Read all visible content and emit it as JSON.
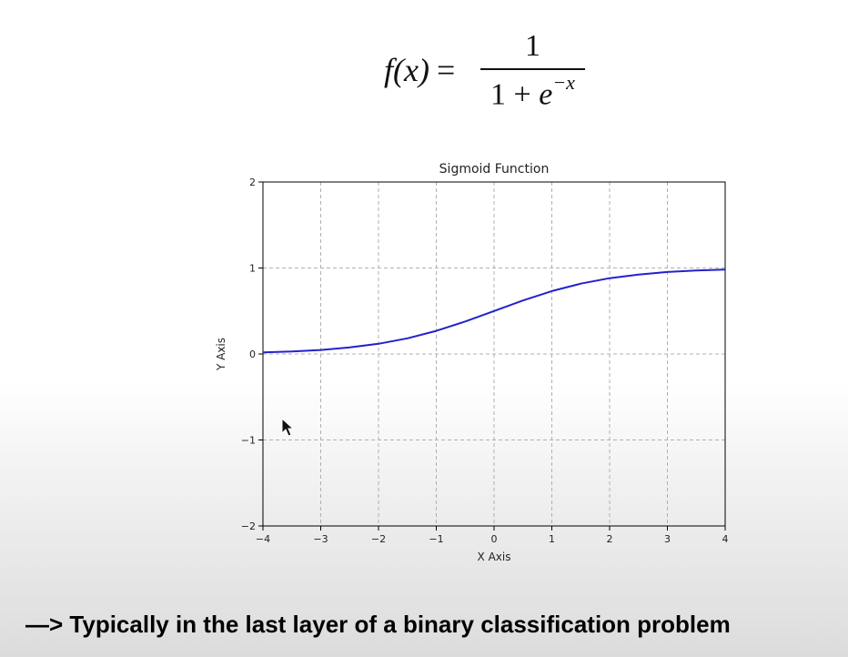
{
  "formula": {
    "lhs": "f(x)",
    "equals": "=",
    "numerator": "1",
    "denominator_base": "1 + ",
    "denominator_e": "e",
    "denominator_exp": "−x"
  },
  "chart_data": {
    "type": "line",
    "title": "Sigmoid Function",
    "xlabel": "X Axis",
    "ylabel": "Y Axis",
    "xlim": [
      -4,
      4
    ],
    "ylim": [
      -2,
      2
    ],
    "grid": true,
    "x_ticks": [
      -4,
      -3,
      -2,
      -1,
      0,
      1,
      2,
      3,
      4
    ],
    "x_tick_labels": [
      "−4",
      "−3",
      "−2",
      "−1",
      "0",
      "1",
      "2",
      "3",
      "4"
    ],
    "y_ticks": [
      -2,
      -1,
      0,
      1,
      2
    ],
    "y_tick_labels": [
      "−2",
      "−1",
      "0",
      "1",
      "2"
    ],
    "series": [
      {
        "color": "#2222cc",
        "x": [
          -4,
          -3.5,
          -3,
          -2.5,
          -2,
          -1.5,
          -1,
          -0.5,
          0,
          0.5,
          1,
          1.5,
          2,
          2.5,
          3,
          3.5,
          4
        ],
        "y": [
          0.018,
          0.029,
          0.047,
          0.076,
          0.119,
          0.182,
          0.269,
          0.378,
          0.5,
          0.622,
          0.731,
          0.818,
          0.881,
          0.924,
          0.953,
          0.971,
          0.982
        ]
      }
    ]
  },
  "caption": "—> Typically in the last layer of a binary classification problem"
}
